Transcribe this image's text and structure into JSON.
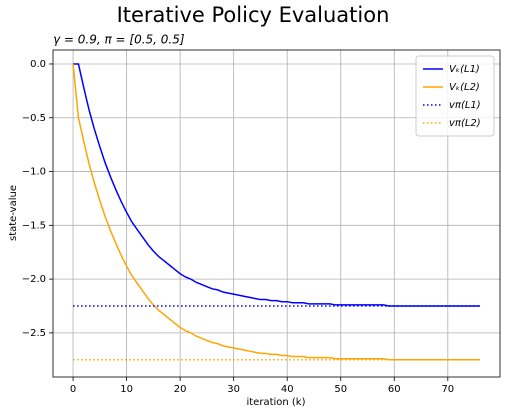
{
  "chart_data": {
    "type": "line",
    "title": "Iterative Policy Evaluation",
    "subtitle": "γ = 0.9, π = [0.5, 0.5]",
    "x_label": "iteration (k)",
    "y_label": "state-value",
    "xlim": [
      -3.75,
      79.75
    ],
    "ylim": [
      -2.91,
      0.13
    ],
    "xticks": [
      0,
      10,
      20,
      30,
      40,
      50,
      60,
      70
    ],
    "yticks": [
      {
        "value": 0,
        "label": "0.0"
      },
      {
        "value": -0.5,
        "label": "−0.5"
      },
      {
        "value": -1,
        "label": "−1.0"
      },
      {
        "value": -1.5,
        "label": "−1.5"
      },
      {
        "value": -2,
        "label": "−2.0"
      },
      {
        "value": -2.5,
        "label": "−2.5"
      }
    ],
    "grid": true,
    "legend": "upper right",
    "series": [
      {
        "name": "Vₖ(L1)",
        "color": "#0000ff",
        "linestyle": "solid",
        "x": [
          0,
          1,
          2,
          3,
          4,
          5,
          6,
          7,
          8,
          9,
          10,
          11,
          12,
          13,
          14,
          15,
          16,
          17,
          18,
          19,
          20,
          21,
          22,
          23,
          24,
          25,
          26,
          27,
          28,
          29,
          30,
          31,
          32,
          33,
          34,
          35,
          36,
          37,
          38,
          39,
          40,
          41,
          42,
          43,
          44,
          45,
          46,
          47,
          48,
          49,
          50,
          51,
          52,
          53,
          54,
          55,
          56,
          57,
          58,
          59,
          60,
          61,
          62,
          63,
          64,
          65,
          66,
          67,
          68,
          69,
          70,
          71,
          72,
          73,
          74,
          75,
          76
        ],
        "values": [
          0,
          0,
          -0.22,
          -0.43,
          -0.61,
          -0.77,
          -0.92,
          -1.05,
          -1.17,
          -1.28,
          -1.38,
          -1.47,
          -1.54,
          -1.61,
          -1.68,
          -1.74,
          -1.79,
          -1.83,
          -1.87,
          -1.91,
          -1.95,
          -1.98,
          -2.0,
          -2.03,
          -2.05,
          -2.07,
          -2.09,
          -2.1,
          -2.12,
          -2.13,
          -2.14,
          -2.15,
          -2.16,
          -2.17,
          -2.18,
          -2.19,
          -2.19,
          -2.2,
          -2.2,
          -2.21,
          -2.21,
          -2.22,
          -2.22,
          -2.22,
          -2.23,
          -2.23,
          -2.23,
          -2.23,
          -2.23,
          -2.24,
          -2.24,
          -2.24,
          -2.24,
          -2.24,
          -2.24,
          -2.24,
          -2.24,
          -2.24,
          -2.24,
          -2.25,
          -2.25,
          -2.25,
          -2.25,
          -2.25,
          -2.25,
          -2.25,
          -2.25,
          -2.25,
          -2.25,
          -2.25,
          -2.25,
          -2.25,
          -2.25,
          -2.25,
          -2.25,
          -2.25,
          -2.25
        ]
      },
      {
        "name": "Vₖ(L2)",
        "color": "#ffa500",
        "linestyle": "solid",
        "x": [
          0,
          1,
          2,
          3,
          4,
          5,
          6,
          7,
          8,
          9,
          10,
          11,
          12,
          13,
          14,
          15,
          16,
          17,
          18,
          19,
          20,
          21,
          22,
          23,
          24,
          25,
          26,
          27,
          28,
          29,
          30,
          31,
          32,
          33,
          34,
          35,
          36,
          37,
          38,
          39,
          40,
          41,
          42,
          43,
          44,
          45,
          46,
          47,
          48,
          49,
          50,
          51,
          52,
          53,
          54,
          55,
          56,
          57,
          58,
          59,
          60,
          61,
          62,
          63,
          64,
          65,
          66,
          67,
          68,
          69,
          70,
          71,
          72,
          73,
          74,
          75,
          76
        ],
        "values": [
          0,
          -0.5,
          -0.72,
          -0.93,
          -1.11,
          -1.27,
          -1.42,
          -1.55,
          -1.67,
          -1.78,
          -1.88,
          -1.97,
          -2.04,
          -2.11,
          -2.18,
          -2.24,
          -2.29,
          -2.33,
          -2.37,
          -2.41,
          -2.45,
          -2.48,
          -2.5,
          -2.53,
          -2.55,
          -2.57,
          -2.59,
          -2.6,
          -2.62,
          -2.63,
          -2.64,
          -2.65,
          -2.66,
          -2.67,
          -2.68,
          -2.69,
          -2.69,
          -2.7,
          -2.7,
          -2.71,
          -2.71,
          -2.72,
          -2.72,
          -2.72,
          -2.73,
          -2.73,
          -2.73,
          -2.73,
          -2.73,
          -2.74,
          -2.74,
          -2.74,
          -2.74,
          -2.74,
          -2.74,
          -2.74,
          -2.74,
          -2.74,
          -2.74,
          -2.75,
          -2.75,
          -2.75,
          -2.75,
          -2.75,
          -2.75,
          -2.75,
          -2.75,
          -2.75,
          -2.75,
          -2.75,
          -2.75,
          -2.75,
          -2.75,
          -2.75,
          -2.75,
          -2.75,
          -2.75
        ]
      },
      {
        "name": "vπ(L1)",
        "color": "#0000ff",
        "linestyle": "dotted",
        "x": [
          0,
          76
        ],
        "values": [
          -2.25,
          -2.25
        ]
      },
      {
        "name": "vπ(L2)",
        "color": "#ffa500",
        "linestyle": "dotted",
        "x": [
          0,
          76
        ],
        "values": [
          -2.75,
          -2.75
        ]
      }
    ]
  }
}
